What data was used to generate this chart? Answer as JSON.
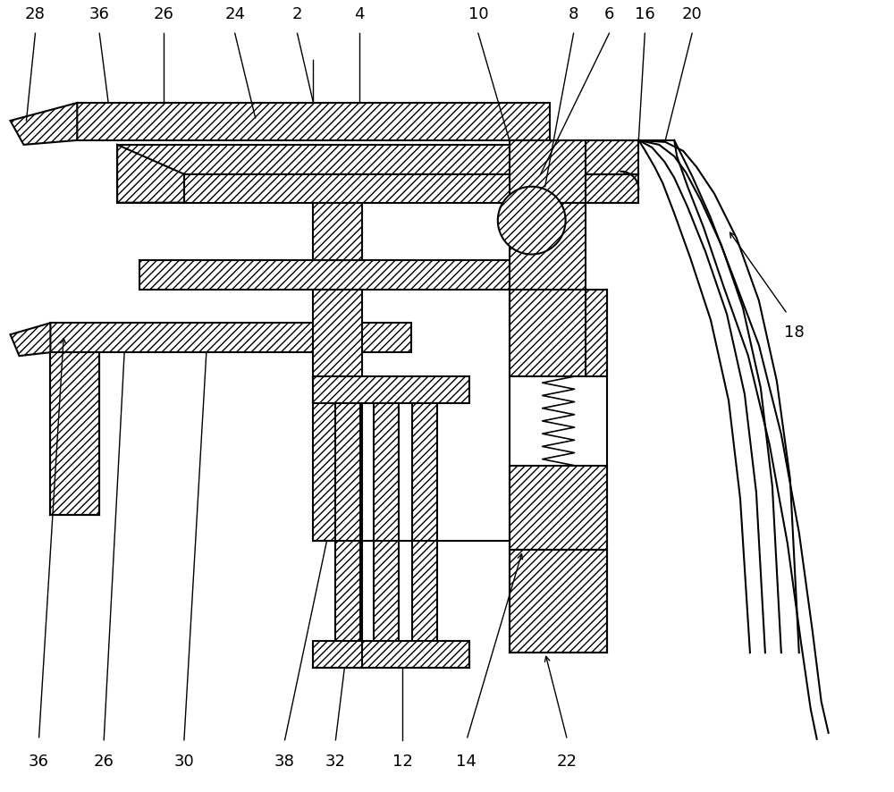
{
  "background_color": "#ffffff",
  "fig_width": 10.0,
  "fig_height": 8.86,
  "hatch": "////",
  "lw": 1.5
}
